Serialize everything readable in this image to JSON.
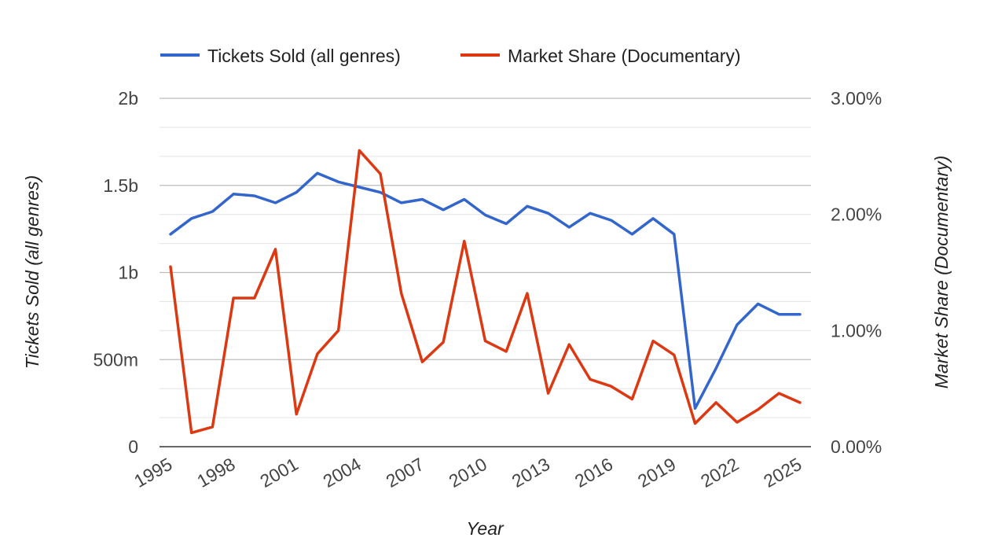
{
  "chart_data": {
    "type": "line",
    "xlabel": "Year",
    "ylabel_left": "Tickets Sold (all genres)",
    "ylabel_right": "Market Share (Documentary)",
    "legend_position": "top",
    "grid": true,
    "x_ticks": [
      "1995",
      "1998",
      "2001",
      "2004",
      "2007",
      "2010",
      "2013",
      "2016",
      "2019",
      "2022",
      "2025"
    ],
    "left_axis": {
      "ylim": [
        0,
        2000000000
      ],
      "ticks": [
        0,
        500000000,
        1000000000,
        1500000000,
        2000000000
      ],
      "tick_labels": [
        "0",
        "500m",
        "1b",
        "1.5b",
        "2b"
      ]
    },
    "right_axis": {
      "ylim": [
        0,
        3
      ],
      "ticks": [
        0,
        1,
        2,
        3
      ],
      "tick_labels": [
        "0.00%",
        "1.00%",
        "2.00%",
        "3.00%"
      ]
    },
    "x": [
      1995,
      1996,
      1997,
      1998,
      1999,
      2000,
      2001,
      2002,
      2003,
      2004,
      2005,
      2006,
      2007,
      2008,
      2009,
      2010,
      2011,
      2012,
      2013,
      2014,
      2015,
      2016,
      2017,
      2018,
      2019,
      2020,
      2021,
      2022,
      2023,
      2024,
      2025
    ],
    "series": [
      {
        "name": "Tickets Sold (all genres)",
        "axis": "left",
        "color": "#3366cc",
        "values": [
          1220000000,
          1310000000,
          1350000000,
          1450000000,
          1440000000,
          1400000000,
          1460000000,
          1570000000,
          1520000000,
          1490000000,
          1460000000,
          1400000000,
          1420000000,
          1360000000,
          1420000000,
          1330000000,
          1280000000,
          1380000000,
          1340000000,
          1260000000,
          1340000000,
          1300000000,
          1220000000,
          1310000000,
          1220000000,
          220000000,
          450000000,
          700000000,
          820000000,
          760000000,
          760000000
        ]
      },
      {
        "name": "Market Share (Documentary)",
        "axis": "right",
        "color": "#dc3912",
        "values": [
          1.55,
          0.12,
          0.17,
          1.28,
          1.28,
          1.7,
          0.28,
          0.8,
          1.0,
          2.55,
          2.35,
          1.32,
          0.73,
          0.9,
          1.77,
          0.91,
          0.82,
          1.32,
          0.46,
          0.88,
          0.58,
          0.52,
          0.41,
          0.91,
          0.79,
          0.2,
          0.38,
          0.21,
          0.32,
          0.46,
          0.38
        ]
      }
    ]
  }
}
